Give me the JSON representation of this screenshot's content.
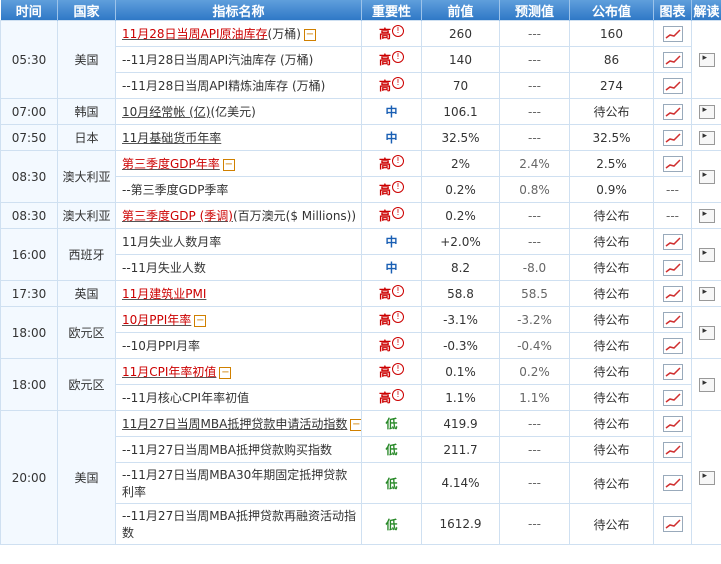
{
  "headers": {
    "time": "时间",
    "country": "国家",
    "indicator": "指标名称",
    "importance": "重要性",
    "previous": "前值",
    "forecast": "预测值",
    "actual": "公布值",
    "chart": "图表",
    "explain": "解读"
  },
  "rows": [
    {
      "name": "11月28日当周API原油库存",
      "unit": "(万桶)",
      "imp": "高",
      "prev": "260",
      "fore": "---",
      "act": "160"
    },
    {
      "name": "--11月28日当周API汽油库存 (万桶)",
      "unit": "",
      "imp": "高",
      "prev": "140",
      "fore": "---",
      "act": "86"
    },
    {
      "name": "--11月28日当周API精炼油库存 (万桶)",
      "unit": "",
      "imp": "高",
      "prev": "70",
      "fore": "---",
      "act": "274"
    },
    {
      "name": "10月经常帐 (亿)",
      "unit": "(亿美元)",
      "imp": "中",
      "prev": "106.1",
      "fore": "---",
      "act": "待公布"
    },
    {
      "name": "11月基础货币年率",
      "unit": "",
      "imp": "中",
      "prev": "32.5%",
      "fore": "---",
      "act": "32.5%"
    },
    {
      "name": "第三季度GDP年率",
      "unit": "",
      "imp": "高",
      "prev": "2%",
      "fore": "2.4%",
      "act": "2.5%"
    },
    {
      "name": "--第三季度GDP季率",
      "unit": "",
      "imp": "高",
      "prev": "0.2%",
      "fore": "0.8%",
      "act": "0.9%"
    },
    {
      "name": "第三季度GDP (季调)",
      "unit": "(百万澳元($ Millions))",
      "imp": "高",
      "prev": "0.2%",
      "fore": "---",
      "act": "待公布"
    },
    {
      "name": "11月失业人数月率",
      "unit": "",
      "imp": "中",
      "prev": "+2.0%",
      "fore": "---",
      "act": "待公布"
    },
    {
      "name": "--11月失业人数",
      "unit": "",
      "imp": "中",
      "prev": "8.2",
      "fore": "-8.0",
      "act": "待公布"
    },
    {
      "name": "11月建筑业PMI",
      "unit": "",
      "imp": "高",
      "prev": "58.8",
      "fore": "58.5",
      "act": "待公布"
    },
    {
      "name": "10月PPI年率",
      "unit": "",
      "imp": "高",
      "prev": "-3.1%",
      "fore": "-3.2%",
      "act": "待公布"
    },
    {
      "name": "--10月PPI月率",
      "unit": "",
      "imp": "高",
      "prev": "-0.3%",
      "fore": "-0.4%",
      "act": "待公布"
    },
    {
      "name": "11月CPI年率初值",
      "unit": "",
      "imp": "高",
      "prev": "0.1%",
      "fore": "0.2%",
      "act": "待公布"
    },
    {
      "name": "--11月核心CPI年率初值",
      "unit": "",
      "imp": "高",
      "prev": "1.1%",
      "fore": "1.1%",
      "act": "待公布"
    },
    {
      "name": "11月27日当周MBA抵押贷款申请活动指数",
      "unit": "",
      "imp": "低",
      "prev": "419.9",
      "fore": "---",
      "act": "待公布"
    },
    {
      "name": "--11月27日当周MBA抵押贷款购买指数",
      "unit": "",
      "imp": "低",
      "prev": "211.7",
      "fore": "---",
      "act": "待公布"
    },
    {
      "name": "--11月27日当周MBA30年期固定抵押贷款利率",
      "unit": "",
      "imp": "低",
      "prev": "4.14%",
      "fore": "---",
      "act": "待公布"
    },
    {
      "name": "--11月27日当周MBA抵押贷款再融资活动指数",
      "unit": "",
      "imp": "低",
      "prev": "1612.9",
      "fore": "---",
      "act": "待公布"
    }
  ],
  "groups": [
    {
      "time": "05:30",
      "country": "美国"
    },
    {
      "time": "07:00",
      "country": "韩国"
    },
    {
      "time": "07:50",
      "country": "日本"
    },
    {
      "time": "08:30",
      "country": "澳大利亚"
    },
    {
      "time": "08:30",
      "country": "澳大利亚"
    },
    {
      "time": "16:00",
      "country": "西班牙"
    },
    {
      "time": "17:30",
      "country": "英国"
    },
    {
      "time": "18:00",
      "country": "欧元区"
    },
    {
      "time": "18:00",
      "country": "欧元区"
    },
    {
      "time": "20:00",
      "country": "美国"
    }
  ],
  "icons": {
    "chart": "line-chart-icon",
    "explain": "explain-icon",
    "alert": "exclamation-icon",
    "expand": "plus-box-icon"
  }
}
